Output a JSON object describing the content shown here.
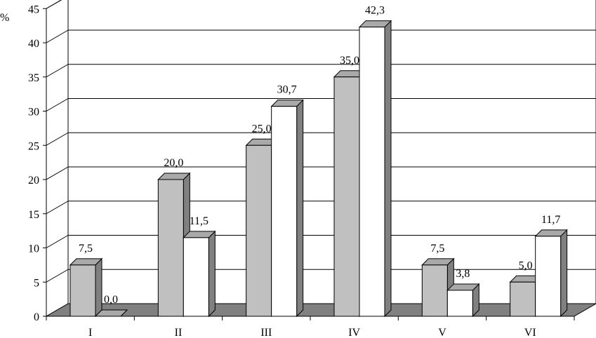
{
  "chart_data": {
    "type": "bar",
    "style": "3d-clustered-column",
    "unit": "%",
    "categories": [
      "I",
      "II",
      "III",
      "IV",
      "V",
      "VI"
    ],
    "series": [
      {
        "values": [
          7.5,
          20.0,
          25.0,
          35.0,
          7.5,
          5.0
        ],
        "color": "#c0c0c0"
      },
      {
        "values": [
          0.0,
          11.5,
          30.7,
          42.3,
          3.8,
          11.7
        ],
        "color": "#ffffff"
      }
    ],
    "data_labels": [
      [
        "7,5",
        "20,0",
        "25,0",
        "35,0",
        "7,5",
        "5,0"
      ],
      [
        "0,0",
        "11,5",
        "30,7",
        "42,3",
        "3,8",
        "11,7"
      ]
    ],
    "y_ticks": [
      "0",
      "5",
      "10",
      "15",
      "20",
      "25",
      "30",
      "35",
      "40",
      "45"
    ],
    "ylim": [
      0,
      45
    ],
    "grid": true,
    "legend": "none",
    "colors": {
      "floor": "#808080",
      "side": "#808080",
      "top": "#a9a9a9",
      "gridline": "#000000"
    }
  }
}
